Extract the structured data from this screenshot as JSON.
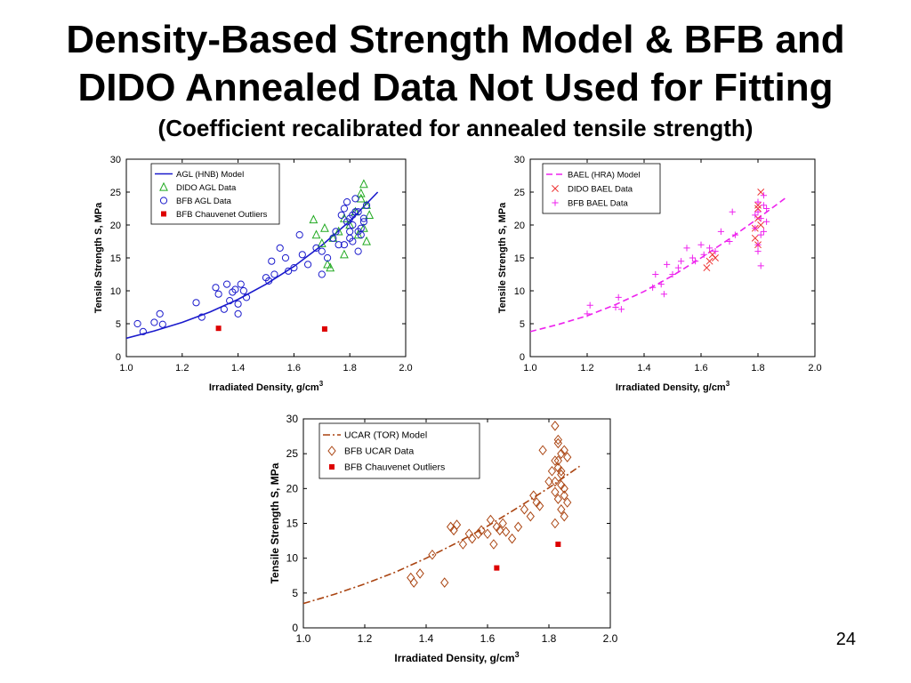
{
  "slide": {
    "title_line1": "Density-Based Strength Model & BFB and",
    "title_line2": "DIDO Annealed Data Not Used for Fitting",
    "subtitle": "(Coefficient recalibrated for annealed tensile strength)",
    "page_number": "24"
  },
  "chart_data": [
    {
      "type": "scatter",
      "xlabel": "Irradiated Density, g/cm",
      "xlabel_sup": "3",
      "ylabel": "Tensile Strength S, MPa",
      "xlim": [
        1.0,
        2.0
      ],
      "ylim": [
        0,
        30
      ],
      "xticks": [
        "1.0",
        "1.2",
        "1.4",
        "1.6",
        "1.8",
        "2.0"
      ],
      "yticks": [
        "0",
        "5",
        "10",
        "15",
        "20",
        "25",
        "30"
      ],
      "grid": false,
      "legend_position": "top-left",
      "legend": [
        "AGL (HNB) Model",
        "DIDO AGL Data",
        "BFB AGL Data",
        "BFB Chauvenet Outliers"
      ],
      "series": [
        {
          "name": "AGL (HNB) Model",
          "kind": "curve",
          "style": "solid",
          "color": "#1a1acc",
          "x": [
            1.0,
            1.1,
            1.2,
            1.3,
            1.4,
            1.5,
            1.6,
            1.7,
            1.8,
            1.9
          ],
          "y": [
            2.8,
            3.9,
            5.2,
            6.8,
            8.7,
            11.0,
            13.7,
            16.9,
            20.6,
            25.0
          ]
        },
        {
          "name": "DIDO AGL Data",
          "kind": "triangle",
          "color": "#22aa22",
          "x": [
            1.67,
            1.68,
            1.7,
            1.71,
            1.72,
            1.74,
            1.76,
            1.78,
            1.8,
            1.82,
            1.84,
            1.85,
            1.86,
            1.87,
            1.78,
            1.83,
            1.85,
            1.73,
            1.84,
            1.86
          ],
          "y": [
            20.8,
            18.5,
            17.2,
            19.5,
            14.0,
            18.0,
            19.0,
            21.0,
            20.0,
            22.0,
            24.0,
            26.2,
            23.0,
            21.5,
            15.5,
            18.5,
            19.5,
            13.5,
            24.8,
            17.5
          ]
        },
        {
          "name": "BFB AGL Data",
          "kind": "circle",
          "color": "#1a1acc",
          "x": [
            1.04,
            1.06,
            1.1,
            1.12,
            1.13,
            1.25,
            1.27,
            1.32,
            1.33,
            1.36,
            1.37,
            1.38,
            1.39,
            1.4,
            1.41,
            1.42,
            1.35,
            1.4,
            1.43,
            1.5,
            1.51,
            1.52,
            1.53,
            1.55,
            1.57,
            1.58,
            1.6,
            1.62,
            1.63,
            1.65,
            1.68,
            1.7,
            1.72,
            1.75,
            1.76,
            1.78,
            1.8,
            1.81,
            1.82,
            1.83,
            1.84,
            1.85,
            1.86,
            1.8,
            1.81,
            1.79,
            1.83,
            1.84,
            1.8,
            1.82,
            1.78,
            1.77,
            1.85,
            1.74,
            1.7,
            1.79,
            1.81,
            1.83
          ],
          "y": [
            5.0,
            3.8,
            5.2,
            6.5,
            4.9,
            8.2,
            6.0,
            10.5,
            9.5,
            11.0,
            8.5,
            9.8,
            10.2,
            8.0,
            11.0,
            10.0,
            7.2,
            6.5,
            9.0,
            12.0,
            11.5,
            14.5,
            12.5,
            16.5,
            15.0,
            13.0,
            13.5,
            18.5,
            15.5,
            14.0,
            16.5,
            12.5,
            15.0,
            19.0,
            17.0,
            22.5,
            21.0,
            20.0,
            24.0,
            22.0,
            19.5,
            21.0,
            23.0,
            18.0,
            17.5,
            20.5,
            16.0,
            18.5,
            19.0,
            22.0,
            17.0,
            21.5,
            20.5,
            18.0,
            16.0,
            23.5,
            21.5,
            19.0
          ]
        },
        {
          "name": "BFB Chauvenet Outliers",
          "kind": "square",
          "color": "#dd0000",
          "x": [
            1.33,
            1.71
          ],
          "y": [
            4.3,
            4.2
          ]
        }
      ]
    },
    {
      "type": "scatter",
      "xlabel": "Irradiated Density, g/cm",
      "xlabel_sup": "3",
      "ylabel": "Tensile Strength S, MPa",
      "xlim": [
        1.0,
        2.0
      ],
      "ylim": [
        0,
        30
      ],
      "xticks": [
        "1.0",
        "1.2",
        "1.4",
        "1.6",
        "1.8",
        "2.0"
      ],
      "yticks": [
        "0",
        "5",
        "10",
        "15",
        "20",
        "25",
        "30"
      ],
      "grid": false,
      "legend_position": "top-left",
      "legend": [
        "BAEL (HRA) Model",
        "DIDO BAEL Data",
        "BFB BAEL Data"
      ],
      "series": [
        {
          "name": "BAEL (HRA) Model",
          "kind": "curve",
          "style": "dashed",
          "color": "#ee22ee",
          "x": [
            1.0,
            1.1,
            1.2,
            1.3,
            1.4,
            1.5,
            1.6,
            1.7,
            1.8,
            1.9
          ],
          "y": [
            3.8,
            4.9,
            6.2,
            7.9,
            9.9,
            12.3,
            15.0,
            17.9,
            21.0,
            24.2
          ]
        },
        {
          "name": "DIDO BAEL Data",
          "kind": "x",
          "color": "#ee3333",
          "x": [
            1.62,
            1.63,
            1.64,
            1.65,
            1.79,
            1.8,
            1.8,
            1.81,
            1.81,
            1.8,
            1.79,
            1.8
          ],
          "y": [
            13.5,
            14.5,
            15.5,
            15.0,
            19.5,
            21.0,
            22.5,
            25.0,
            20.0,
            17.0,
            18.0,
            23.0
          ]
        },
        {
          "name": "BFB BAEL Data",
          "kind": "plus",
          "color": "#ee22ee",
          "x": [
            1.2,
            1.21,
            1.3,
            1.31,
            1.32,
            1.43,
            1.44,
            1.46,
            1.47,
            1.48,
            1.5,
            1.52,
            1.53,
            1.55,
            1.57,
            1.58,
            1.6,
            1.61,
            1.63,
            1.65,
            1.67,
            1.7,
            1.71,
            1.72,
            1.79,
            1.8,
            1.81,
            1.82,
            1.83,
            1.8,
            1.81,
            1.82,
            1.79,
            1.8,
            1.81,
            1.82,
            1.83,
            1.8
          ],
          "y": [
            6.5,
            7.8,
            7.5,
            9.0,
            7.2,
            10.5,
            12.5,
            11.0,
            9.5,
            14.0,
            12.5,
            13.5,
            14.5,
            16.5,
            15.0,
            14.5,
            17.0,
            15.5,
            16.5,
            16.0,
            19.0,
            17.5,
            22.0,
            18.5,
            19.5,
            22.0,
            21.0,
            23.0,
            20.5,
            17.0,
            18.5,
            24.5,
            21.5,
            16.0,
            13.8,
            19.0,
            22.5,
            23.5
          ]
        }
      ]
    },
    {
      "type": "scatter",
      "xlabel": "Irradiated Density, g/cm",
      "xlabel_sup": "3",
      "ylabel": "Tensile Strength S, MPa",
      "xlim": [
        1.0,
        2.0
      ],
      "ylim": [
        0,
        30
      ],
      "xticks": [
        "1.0",
        "1.2",
        "1.4",
        "1.6",
        "1.8",
        "2.0"
      ],
      "yticks": [
        "0",
        "5",
        "10",
        "15",
        "20",
        "25",
        "30"
      ],
      "grid": false,
      "legend_position": "top-center",
      "legend": [
        "UCAR (TOR) Model",
        "BFB UCAR Data",
        "BFB Chauvenet Outliers"
      ],
      "series": [
        {
          "name": "UCAR (TOR) Model",
          "kind": "curve",
          "style": "dashdot",
          "color": "#aa4411",
          "x": [
            1.0,
            1.1,
            1.2,
            1.3,
            1.4,
            1.5,
            1.6,
            1.7,
            1.8,
            1.9
          ],
          "y": [
            3.5,
            4.8,
            6.3,
            8.0,
            10.0,
            12.2,
            14.6,
            17.3,
            20.1,
            23.2
          ]
        },
        {
          "name": "BFB UCAR Data",
          "kind": "diamond",
          "color": "#aa4411",
          "x": [
            1.35,
            1.36,
            1.38,
            1.42,
            1.46,
            1.48,
            1.49,
            1.5,
            1.52,
            1.54,
            1.55,
            1.57,
            1.58,
            1.6,
            1.61,
            1.62,
            1.63,
            1.64,
            1.65,
            1.66,
            1.68,
            1.7,
            1.72,
            1.74,
            1.75,
            1.76,
            1.77,
            1.78,
            1.8,
            1.81,
            1.82,
            1.83,
            1.84,
            1.85,
            1.86,
            1.82,
            1.83,
            1.84,
            1.85,
            1.82,
            1.83,
            1.84,
            1.85,
            1.82,
            1.83,
            1.84,
            1.85,
            1.86,
            1.82,
            1.83,
            1.84
          ],
          "y": [
            7.2,
            6.5,
            7.8,
            10.5,
            6.5,
            14.5,
            14.0,
            14.8,
            12.0,
            13.5,
            12.8,
            13.5,
            14.0,
            13.5,
            15.5,
            12.0,
            14.5,
            14.0,
            15.0,
            13.8,
            12.8,
            14.5,
            17.0,
            16.0,
            19.0,
            18.0,
            17.5,
            25.5,
            21.0,
            22.5,
            24.0,
            26.5,
            25.0,
            25.5,
            24.5,
            29.0,
            27.0,
            22.0,
            20.0,
            19.5,
            18.5,
            17.0,
            16.0,
            21.0,
            23.0,
            20.5,
            19.0,
            18.0,
            15.0,
            24.0,
            22.5
          ]
        },
        {
          "name": "BFB Chauvenet Outliers",
          "kind": "square",
          "color": "#dd0000",
          "x": [
            1.63,
            1.83
          ],
          "y": [
            8.6,
            12.0
          ]
        }
      ]
    }
  ]
}
